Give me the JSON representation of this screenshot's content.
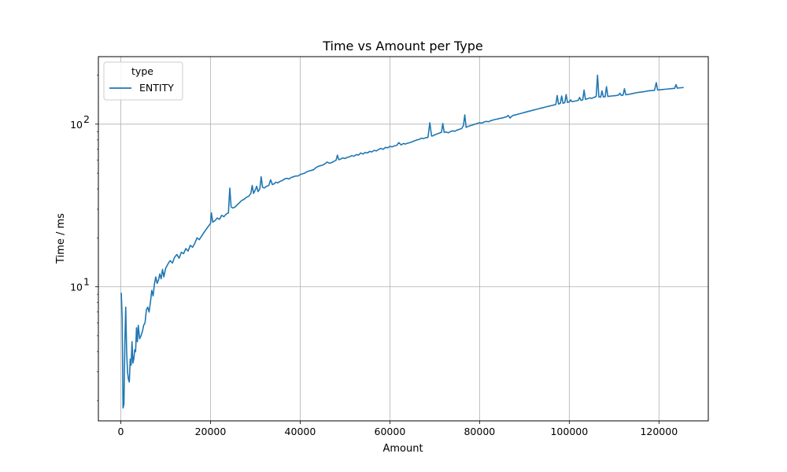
{
  "chart_data": {
    "type": "line",
    "title": "Time vs Amount per Type",
    "xlabel": "Amount",
    "ylabel": "Time / ms",
    "xlim": [
      -5000,
      131000
    ],
    "ylim": [
      1.5,
      260
    ],
    "yscale": "log",
    "grid": true,
    "legend": {
      "title": "type",
      "placement": "top-left"
    },
    "x_ticks": [
      {
        "value": 0,
        "label": "0"
      },
      {
        "value": 20000,
        "label": "20000"
      },
      {
        "value": 40000,
        "label": "40000"
      },
      {
        "value": 60000,
        "label": "60000"
      },
      {
        "value": 80000,
        "label": "80000"
      },
      {
        "value": 100000,
        "label": "100000"
      },
      {
        "value": 120000,
        "label": "120000"
      }
    ],
    "y_ticks": [
      {
        "value": 10,
        "label": "10",
        "exp": "1"
      },
      {
        "value": 100,
        "label": "10",
        "exp": "2"
      }
    ],
    "series": [
      {
        "name": "ENTITY",
        "color": "#1f77b4",
        "points": [
          [
            100,
            9.2
          ],
          [
            300,
            6.5
          ],
          [
            500,
            1.8
          ],
          [
            700,
            1.9
          ],
          [
            900,
            4.5
          ],
          [
            1100,
            7.5
          ],
          [
            1300,
            4.0
          ],
          [
            1500,
            3.0
          ],
          [
            1700,
            2.7
          ],
          [
            1900,
            2.6
          ],
          [
            2100,
            3.6
          ],
          [
            2300,
            3.3
          ],
          [
            2500,
            4.6
          ],
          [
            2700,
            3.4
          ],
          [
            2900,
            3.6
          ],
          [
            3100,
            4.1
          ],
          [
            3300,
            4.0
          ],
          [
            3500,
            5.6
          ],
          [
            3700,
            4.6
          ],
          [
            3900,
            5.8
          ],
          [
            4200,
            4.8
          ],
          [
            4500,
            5.0
          ],
          [
            4800,
            5.3
          ],
          [
            5100,
            5.8
          ],
          [
            5400,
            6.0
          ],
          [
            5700,
            7.2
          ],
          [
            6000,
            7.5
          ],
          [
            6300,
            7.0
          ],
          [
            6600,
            8.0
          ],
          [
            6900,
            9.5
          ],
          [
            7200,
            8.8
          ],
          [
            7500,
            10.4
          ],
          [
            7800,
            11.5
          ],
          [
            8100,
            10.5
          ],
          [
            8400,
            11.0
          ],
          [
            8700,
            12.0
          ],
          [
            9000,
            11.2
          ],
          [
            9300,
            12.8
          ],
          [
            9600,
            11.5
          ],
          [
            10000,
            13.0
          ],
          [
            10500,
            13.8
          ],
          [
            11000,
            14.5
          ],
          [
            11500,
            14.0
          ],
          [
            12000,
            15.2
          ],
          [
            12500,
            15.8
          ],
          [
            13000,
            15.0
          ],
          [
            13500,
            16.3
          ],
          [
            14000,
            16.0
          ],
          [
            14500,
            17.2
          ],
          [
            15000,
            16.6
          ],
          [
            15500,
            18.0
          ],
          [
            16000,
            17.5
          ],
          [
            16500,
            18.5
          ],
          [
            17000,
            20.0
          ],
          [
            17500,
            19.5
          ],
          [
            18000,
            20.5
          ],
          [
            18500,
            21.5
          ],
          [
            19000,
            22.5
          ],
          [
            19500,
            23.5
          ],
          [
            20000,
            24.5
          ],
          [
            20200,
            28.5
          ],
          [
            20500,
            25.0
          ],
          [
            21000,
            25.5
          ],
          [
            21500,
            26.5
          ],
          [
            22000,
            26.0
          ],
          [
            22500,
            27.5
          ],
          [
            23000,
            27.0
          ],
          [
            23500,
            28.0
          ],
          [
            24000,
            28.5
          ],
          [
            24300,
            40.5
          ],
          [
            24600,
            31.0
          ],
          [
            25000,
            30.5
          ],
          [
            25500,
            31.0
          ],
          [
            26000,
            32.0
          ],
          [
            26500,
            33.0
          ],
          [
            27000,
            34.0
          ],
          [
            27500,
            34.5
          ],
          [
            28000,
            35.5
          ],
          [
            28500,
            36.0
          ],
          [
            29000,
            37.5
          ],
          [
            29300,
            42.0
          ],
          [
            29600,
            37.5
          ],
          [
            30000,
            39.5
          ],
          [
            30300,
            41.5
          ],
          [
            30600,
            38.5
          ],
          [
            31000,
            40.0
          ],
          [
            31300,
            47.5
          ],
          [
            31600,
            41.0
          ],
          [
            32000,
            40.5
          ],
          [
            32500,
            41.5
          ],
          [
            33000,
            42.0
          ],
          [
            33400,
            45.5
          ],
          [
            33800,
            42.5
          ],
          [
            34200,
            43.0
          ],
          [
            34600,
            44.0
          ],
          [
            35000,
            43.5
          ],
          [
            35500,
            44.5
          ],
          [
            36000,
            45.0
          ],
          [
            36500,
            46.0
          ],
          [
            37000,
            46.5
          ],
          [
            37500,
            46.0
          ],
          [
            38000,
            47.0
          ],
          [
            38500,
            47.5
          ],
          [
            39000,
            48.0
          ],
          [
            39500,
            48.0
          ],
          [
            40000,
            49.0
          ],
          [
            40500,
            49.5
          ],
          [
            41000,
            50.0
          ],
          [
            41500,
            51.0
          ],
          [
            42000,
            51.5
          ],
          [
            42500,
            52.0
          ],
          [
            43000,
            52.5
          ],
          [
            43500,
            54.0
          ],
          [
            44000,
            55.0
          ],
          [
            44500,
            55.5
          ],
          [
            45000,
            56.0
          ],
          [
            45500,
            57.0
          ],
          [
            46000,
            58.5
          ],
          [
            46500,
            57.5
          ],
          [
            47000,
            58.0
          ],
          [
            47500,
            59.0
          ],
          [
            48000,
            60.0
          ],
          [
            48300,
            64.5
          ],
          [
            48600,
            60.5
          ],
          [
            49000,
            61.0
          ],
          [
            49500,
            62.0
          ],
          [
            50000,
            61.5
          ],
          [
            50500,
            62.5
          ],
          [
            51000,
            63.0
          ],
          [
            51500,
            64.0
          ],
          [
            52000,
            63.5
          ],
          [
            52500,
            65.0
          ],
          [
            53000,
            64.5
          ],
          [
            53500,
            66.5
          ],
          [
            54000,
            65.5
          ],
          [
            54500,
            67.0
          ],
          [
            55000,
            66.5
          ],
          [
            55500,
            68.0
          ],
          [
            56000,
            67.5
          ],
          [
            56500,
            69.0
          ],
          [
            57000,
            68.5
          ],
          [
            57500,
            70.0
          ],
          [
            58000,
            71.0
          ],
          [
            58500,
            70.0
          ],
          [
            59000,
            72.0
          ],
          [
            59500,
            71.5
          ],
          [
            60000,
            73.0
          ],
          [
            60500,
            72.5
          ],
          [
            61000,
            73.5
          ],
          [
            61500,
            74.0
          ],
          [
            62000,
            77.0
          ],
          [
            62500,
            74.5
          ],
          [
            63000,
            76.0
          ],
          [
            63500,
            75.5
          ],
          [
            64000,
            76.5
          ],
          [
            64500,
            77.0
          ],
          [
            65000,
            78.0
          ],
          [
            65500,
            79.0
          ],
          [
            66000,
            80.0
          ],
          [
            66500,
            80.5
          ],
          [
            67000,
            82.0
          ],
          [
            67500,
            81.5
          ],
          [
            68000,
            82.5
          ],
          [
            68500,
            83.0
          ],
          [
            68900,
            102.0
          ],
          [
            69300,
            84.5
          ],
          [
            69700,
            85.0
          ],
          [
            70000,
            86.0
          ],
          [
            70500,
            87.0
          ],
          [
            71000,
            88.0
          ],
          [
            71500,
            89.0
          ],
          [
            71800,
            101.0
          ],
          [
            72100,
            89.0
          ],
          [
            72500,
            89.5
          ],
          [
            73000,
            88.5
          ],
          [
            73500,
            90.0
          ],
          [
            74000,
            91.0
          ],
          [
            74500,
            90.5
          ],
          [
            75000,
            92.0
          ],
          [
            75500,
            93.0
          ],
          [
            76000,
            94.0
          ],
          [
            76400,
            98.0
          ],
          [
            76700,
            114.0
          ],
          [
            77000,
            95.5
          ],
          [
            77500,
            97.0
          ],
          [
            78000,
            98.0
          ],
          [
            78500,
            99.0
          ],
          [
            79000,
            100.0
          ],
          [
            79500,
            101.0
          ],
          [
            80000,
            102.0
          ],
          [
            80500,
            101.5
          ],
          [
            81000,
            103.0
          ],
          [
            81500,
            104.0
          ],
          [
            82000,
            103.5
          ],
          [
            82500,
            105.0
          ],
          [
            83000,
            106.0
          ],
          [
            83500,
            107.0
          ],
          [
            84000,
            107.5
          ],
          [
            84500,
            108.5
          ],
          [
            85000,
            109.0
          ],
          [
            85500,
            110.0
          ],
          [
            86000,
            111.0
          ],
          [
            86400,
            113.0
          ],
          [
            86800,
            109.0
          ],
          [
            87200,
            112.0
          ],
          [
            87600,
            113.5
          ],
          [
            88000,
            114.0
          ],
          [
            88500,
            115.0
          ],
          [
            89000,
            116.0
          ],
          [
            89500,
            117.0
          ],
          [
            90000,
            118.0
          ],
          [
            90500,
            119.0
          ],
          [
            91000,
            120.0
          ],
          [
            91500,
            121.0
          ],
          [
            92000,
            122.0
          ],
          [
            92500,
            123.0
          ],
          [
            93000,
            124.0
          ],
          [
            93500,
            125.0
          ],
          [
            94000,
            126.0
          ],
          [
            94500,
            127.0
          ],
          [
            95000,
            128.0
          ],
          [
            95500,
            129.0
          ],
          [
            96000,
            130.0
          ],
          [
            96500,
            131.0
          ],
          [
            97000,
            132.0
          ],
          [
            97300,
            150.0
          ],
          [
            97600,
            133.0
          ],
          [
            98000,
            134.0
          ],
          [
            98300,
            149.0
          ],
          [
            98600,
            134.5
          ],
          [
            99000,
            135.5
          ],
          [
            99300,
            152.0
          ],
          [
            99600,
            136.0
          ],
          [
            100000,
            137.0
          ],
          [
            100300,
            141.0
          ],
          [
            100600,
            137.5
          ],
          [
            101000,
            138.0
          ],
          [
            101500,
            139.0
          ],
          [
            102000,
            140.0
          ],
          [
            102300,
            146.0
          ],
          [
            102600,
            140.0
          ],
          [
            103000,
            141.0
          ],
          [
            103300,
            162.0
          ],
          [
            103600,
            142.0
          ],
          [
            104000,
            143.0
          ],
          [
            104500,
            145.0
          ],
          [
            105000,
            144.0
          ],
          [
            105500,
            146.0
          ],
          [
            106000,
            148.0
          ],
          [
            106300,
            200.0
          ],
          [
            106600,
            147.0
          ],
          [
            107000,
            146.5
          ],
          [
            107300,
            160.0
          ],
          [
            107600,
            147.0
          ],
          [
            108000,
            147.5
          ],
          [
            108300,
            170.0
          ],
          [
            108600,
            148.0
          ],
          [
            109000,
            148.5
          ],
          [
            109500,
            149.0
          ],
          [
            110000,
            149.5
          ],
          [
            110500,
            150.0
          ],
          [
            111000,
            151.0
          ],
          [
            111300,
            155.0
          ],
          [
            111600,
            150.0
          ],
          [
            112000,
            151.0
          ],
          [
            112300,
            165.0
          ],
          [
            112600,
            151.5
          ],
          [
            113000,
            152.0
          ],
          [
            113500,
            153.0
          ],
          [
            114000,
            154.0
          ],
          [
            114500,
            155.0
          ],
          [
            115000,
            156.0
          ],
          [
            115500,
            157.0
          ],
          [
            116000,
            157.5
          ],
          [
            116500,
            158.0
          ],
          [
            117000,
            159.0
          ],
          [
            117500,
            160.0
          ],
          [
            118000,
            160.5
          ],
          [
            118500,
            161.0
          ],
          [
            119000,
            161.5
          ],
          [
            119400,
            180.0
          ],
          [
            119700,
            162.0
          ],
          [
            120000,
            162.5
          ],
          [
            120500,
            163.0
          ],
          [
            121000,
            163.5
          ],
          [
            121500,
            164.0
          ],
          [
            122000,
            164.5
          ],
          [
            122500,
            165.0
          ],
          [
            123000,
            165.5
          ],
          [
            123500,
            166.0
          ],
          [
            123800,
            175.0
          ],
          [
            124100,
            166.5
          ],
          [
            124500,
            167.0
          ],
          [
            125000,
            167.5
          ],
          [
            125500,
            168.0
          ]
        ]
      }
    ]
  }
}
